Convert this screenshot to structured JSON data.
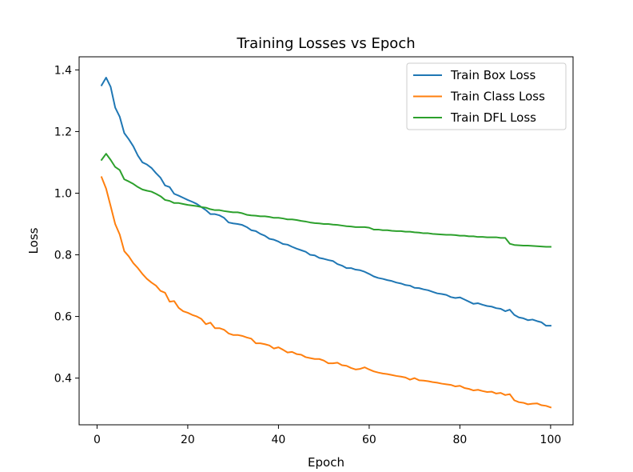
{
  "chart_data": {
    "type": "line",
    "title": "Training Losses vs Epoch",
    "xlabel": "Epoch",
    "ylabel": "Loss",
    "xlim": [
      -3.95,
      104.95
    ],
    "ylim": [
      0.2485,
      1.4425
    ],
    "xticks": [
      0,
      20,
      40,
      60,
      80,
      100
    ],
    "yticks": [
      0.4,
      0.6,
      0.8,
      1.0,
      1.2,
      1.4
    ],
    "xtick_labels": [
      "0",
      "20",
      "40",
      "60",
      "80",
      "100"
    ],
    "ytick_labels": [
      "0.4",
      "0.6",
      "0.8",
      "1.0",
      "1.2",
      "1.4"
    ],
    "grid": false,
    "legend_position": "top-right",
    "x": [
      1,
      2,
      3,
      4,
      5,
      6,
      7,
      8,
      9,
      10,
      11,
      12,
      13,
      14,
      15,
      16,
      17,
      18,
      19,
      20,
      21,
      22,
      23,
      24,
      25,
      26,
      27,
      28,
      29,
      30,
      31,
      32,
      33,
      34,
      35,
      36,
      37,
      38,
      39,
      40,
      41,
      42,
      43,
      44,
      45,
      46,
      47,
      48,
      49,
      50,
      51,
      52,
      53,
      54,
      55,
      56,
      57,
      58,
      59,
      60,
      61,
      62,
      63,
      64,
      65,
      66,
      67,
      68,
      69,
      70,
      71,
      72,
      73,
      74,
      75,
      76,
      77,
      78,
      79,
      80,
      81,
      82,
      83,
      84,
      85,
      86,
      87,
      88,
      89,
      90,
      91,
      92,
      93,
      94,
      95,
      96,
      97,
      98,
      99,
      100
    ],
    "series": [
      {
        "name": "Train Box Loss",
        "color": "#1f77b4",
        "values": [
          1.35,
          1.375,
          1.345,
          1.278,
          1.248,
          1.195,
          1.175,
          1.152,
          1.122,
          1.1,
          1.093,
          1.082,
          1.065,
          1.05,
          1.025,
          1.02,
          0.998,
          0.992,
          0.985,
          0.978,
          0.972,
          0.965,
          0.955,
          0.945,
          0.932,
          0.932,
          0.928,
          0.92,
          0.905,
          0.902,
          0.9,
          0.897,
          0.89,
          0.88,
          0.877,
          0.868,
          0.862,
          0.852,
          0.849,
          0.843,
          0.835,
          0.833,
          0.826,
          0.82,
          0.815,
          0.81,
          0.8,
          0.798,
          0.79,
          0.787,
          0.783,
          0.78,
          0.77,
          0.765,
          0.757,
          0.757,
          0.752,
          0.75,
          0.745,
          0.738,
          0.73,
          0.725,
          0.722,
          0.718,
          0.715,
          0.71,
          0.707,
          0.702,
          0.7,
          0.693,
          0.692,
          0.688,
          0.685,
          0.68,
          0.675,
          0.673,
          0.67,
          0.663,
          0.66,
          0.662,
          0.655,
          0.648,
          0.641,
          0.643,
          0.638,
          0.634,
          0.632,
          0.627,
          0.625,
          0.617,
          0.622,
          0.605,
          0.597,
          0.594,
          0.588,
          0.59,
          0.585,
          0.581,
          0.57,
          0.57
        ]
      },
      {
        "name": "Train Class Loss",
        "color": "#ff7f0e",
        "values": [
          1.052,
          1.015,
          0.958,
          0.9,
          0.866,
          0.812,
          0.795,
          0.773,
          0.757,
          0.738,
          0.722,
          0.71,
          0.7,
          0.683,
          0.677,
          0.648,
          0.65,
          0.628,
          0.617,
          0.612,
          0.605,
          0.6,
          0.592,
          0.575,
          0.58,
          0.562,
          0.562,
          0.557,
          0.545,
          0.54,
          0.54,
          0.537,
          0.532,
          0.528,
          0.513,
          0.513,
          0.51,
          0.506,
          0.496,
          0.5,
          0.492,
          0.483,
          0.485,
          0.478,
          0.476,
          0.468,
          0.465,
          0.462,
          0.462,
          0.457,
          0.448,
          0.448,
          0.45,
          0.442,
          0.44,
          0.433,
          0.428,
          0.43,
          0.435,
          0.428,
          0.422,
          0.418,
          0.415,
          0.413,
          0.41,
          0.407,
          0.405,
          0.402,
          0.395,
          0.4,
          0.393,
          0.392,
          0.39,
          0.387,
          0.385,
          0.382,
          0.38,
          0.378,
          0.373,
          0.375,
          0.368,
          0.365,
          0.36,
          0.362,
          0.358,
          0.355,
          0.356,
          0.35,
          0.352,
          0.345,
          0.348,
          0.328,
          0.322,
          0.32,
          0.315,
          0.317,
          0.318,
          0.312,
          0.31,
          0.305
        ]
      },
      {
        "name": "Train DFL Loss",
        "color": "#2ca02c",
        "values": [
          1.108,
          1.128,
          1.108,
          1.085,
          1.075,
          1.045,
          1.038,
          1.03,
          1.02,
          1.012,
          1.008,
          1.005,
          0.998,
          0.99,
          0.978,
          0.975,
          0.968,
          0.968,
          0.965,
          0.962,
          0.96,
          0.958,
          0.955,
          0.953,
          0.948,
          0.945,
          0.945,
          0.942,
          0.94,
          0.938,
          0.938,
          0.935,
          0.93,
          0.928,
          0.927,
          0.925,
          0.925,
          0.923,
          0.92,
          0.92,
          0.918,
          0.915,
          0.915,
          0.913,
          0.91,
          0.908,
          0.905,
          0.903,
          0.902,
          0.9,
          0.9,
          0.898,
          0.897,
          0.895,
          0.893,
          0.892,
          0.89,
          0.89,
          0.89,
          0.888,
          0.882,
          0.882,
          0.88,
          0.88,
          0.878,
          0.877,
          0.877,
          0.875,
          0.875,
          0.873,
          0.872,
          0.87,
          0.87,
          0.868,
          0.867,
          0.866,
          0.865,
          0.865,
          0.864,
          0.862,
          0.862,
          0.86,
          0.86,
          0.858,
          0.858,
          0.857,
          0.857,
          0.857,
          0.855,
          0.855,
          0.836,
          0.832,
          0.831,
          0.83,
          0.83,
          0.829,
          0.828,
          0.827,
          0.826,
          0.826
        ]
      }
    ]
  }
}
